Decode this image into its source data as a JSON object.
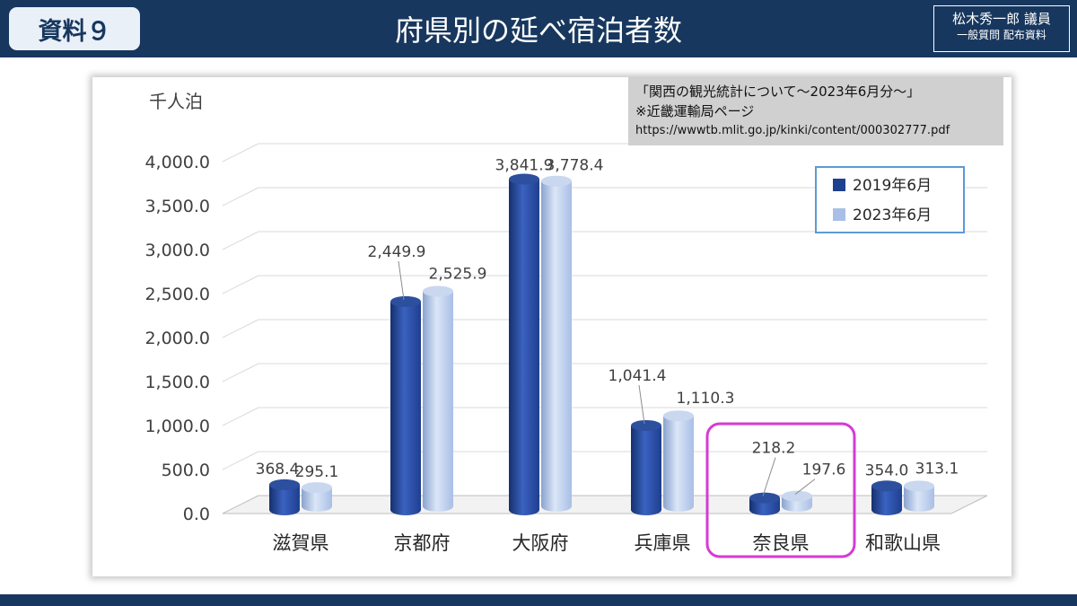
{
  "header": {
    "doc_tag": "資料９",
    "title": "府県別の延べ宿泊者数",
    "member_name": "松木秀一郎 議員",
    "member_note": "一般質問 配布資料"
  },
  "source": {
    "line1": "「関西の観光統計について～2023年6月分～」",
    "line2": "※近畿運輸局ページ",
    "url": "https://wwwtb.mlit.go.jp/kinki/content/000302777.pdf"
  },
  "highlight_color": "#d63ad6",
  "chart_data": {
    "type": "bar",
    "ylabel": "千人泊",
    "ylim": [
      0,
      4000
    ],
    "yticks": [
      "0.0",
      "500.0",
      "1,000.0",
      "1,500.0",
      "2,000.0",
      "2,500.0",
      "3,000.0",
      "3,500.0",
      "4,000.0"
    ],
    "grid": true,
    "legend_position": "top-right",
    "categories": [
      "滋賀県",
      "京都府",
      "大阪府",
      "兵庫県",
      "奈良県",
      "和歌山県"
    ],
    "series": [
      {
        "name": "2019年6月",
        "color": "#1f3f8f",
        "values": [
          368.4,
          2449.9,
          3841.9,
          1041.4,
          218.2,
          354.0
        ],
        "labels": [
          "368.4",
          "2,449.9",
          "3,841.9",
          "1,041.4",
          "218.2",
          "354.0"
        ]
      },
      {
        "name": "2023年6月",
        "color": "#a9bfe6",
        "values": [
          295.1,
          2525.9,
          3778.4,
          1110.3,
          197.6,
          313.1
        ],
        "labels": [
          "295.1",
          "2,525.9",
          "3,778.4",
          "1,110.3",
          "197.6",
          "313.1"
        ]
      }
    ],
    "highlighted_category": "奈良県"
  }
}
